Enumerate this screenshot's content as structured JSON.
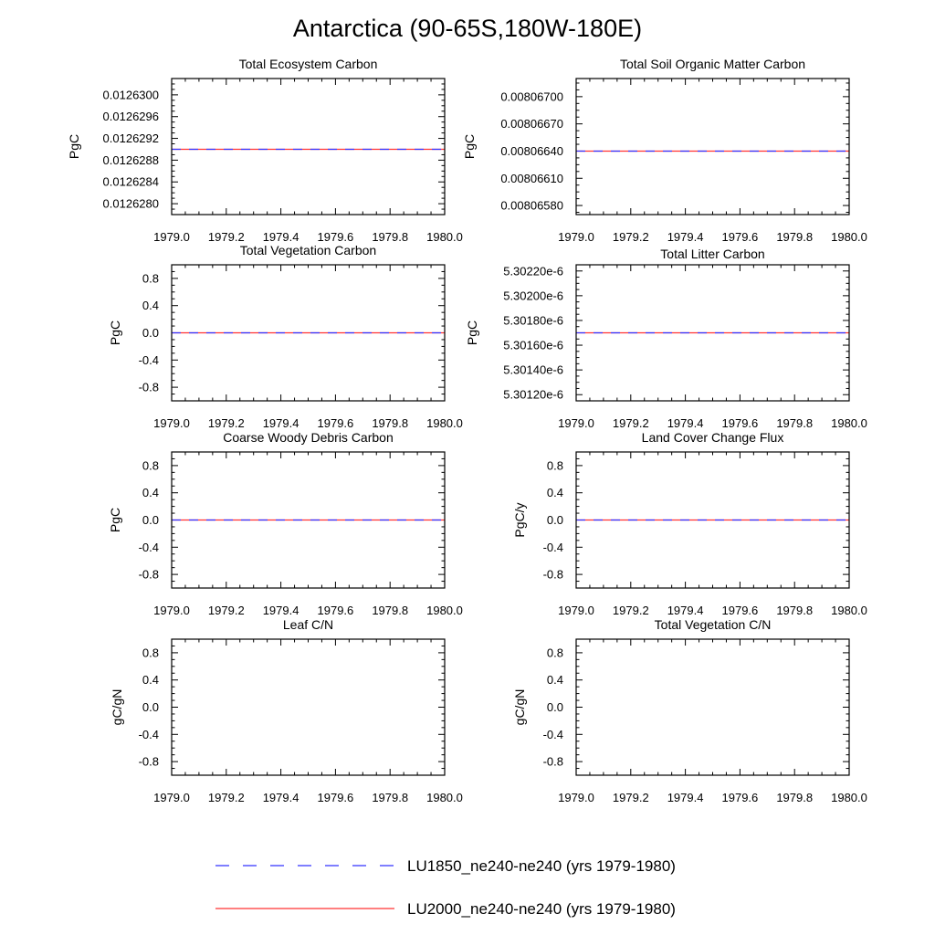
{
  "figure_title": "Antarctica (90-65S,180W-180E)",
  "series_colors": [
    "#3333ff",
    "#ff3333"
  ],
  "legend": [
    {
      "label": "LU1850_ne240-ne240 (yrs 1979-1980)",
      "color": "#3333ff",
      "style": "dashed"
    },
    {
      "label": "LU2000_ne240-ne240 (yrs 1979-1980)",
      "color": "#ff3333",
      "style": "solid"
    }
  ],
  "chart_data": [
    {
      "type": "line",
      "title": "Total Ecosystem Carbon",
      "ylabel": "PgC",
      "xlim": [
        1979.0,
        1980.0
      ],
      "ylim": [
        0.0126278,
        0.0126303
      ],
      "xticks": [
        "1979.0",
        "1979.2",
        "1979.4",
        "1979.6",
        "1979.8",
        "1980.0"
      ],
      "yticks": [
        "0.0126280",
        "0.0126284",
        "0.0126288",
        "0.0126292",
        "0.0126296",
        "0.0126300"
      ],
      "series": [
        {
          "x": [
            1979.0,
            1980.0
          ],
          "values": [
            0.012629,
            0.012629
          ]
        },
        {
          "x": [
            1979.0,
            1980.0
          ],
          "values": [
            0.012629,
            0.012629
          ]
        }
      ]
    },
    {
      "type": "line",
      "title": "Total Soil Organic Matter Carbon",
      "ylabel": "PgC",
      "xlim": [
        1979.0,
        1980.0
      ],
      "ylim": [
        0.0080657,
        0.0080672
      ],
      "xticks": [
        "1979.0",
        "1979.2",
        "1979.4",
        "1979.6",
        "1979.8",
        "1980.0"
      ],
      "yticks": [
        "0.00806580",
        "0.00806610",
        "0.00806640",
        "0.00806670",
        "0.00806700"
      ],
      "series": [
        {
          "x": [
            1979.0,
            1980.0
          ],
          "values": [
            0.0080664,
            0.0080664
          ]
        },
        {
          "x": [
            1979.0,
            1980.0
          ],
          "values": [
            0.0080664,
            0.0080664
          ]
        }
      ]
    },
    {
      "type": "line",
      "title": "Total Vegetation Carbon",
      "ylabel": "PgC",
      "xlim": [
        1979.0,
        1980.0
      ],
      "ylim": [
        -1.0,
        1.0
      ],
      "xticks": [
        "1979.0",
        "1979.2",
        "1979.4",
        "1979.6",
        "1979.8",
        "1980.0"
      ],
      "yticks": [
        "-0.8",
        "-0.4",
        "0.0",
        "0.4",
        "0.8"
      ],
      "series": [
        {
          "x": [
            1979.0,
            1980.0
          ],
          "values": [
            0.0,
            0.0
          ]
        },
        {
          "x": [
            1979.0,
            1980.0
          ],
          "values": [
            0.0,
            0.0
          ]
        }
      ]
    },
    {
      "type": "line",
      "title": "Total Litter Carbon",
      "ylabel": "PgC",
      "xlim": [
        1979.0,
        1980.0
      ],
      "ylim": [
        5.30115e-06,
        5.30225e-06
      ],
      "xticks": [
        "1979.0",
        "1979.2",
        "1979.4",
        "1979.6",
        "1979.8",
        "1980.0"
      ],
      "yticks": [
        "5.30120e-6",
        "5.30140e-6",
        "5.30160e-6",
        "5.30180e-6",
        "5.30200e-6",
        "5.30220e-6"
      ],
      "series": [
        {
          "x": [
            1979.0,
            1980.0
          ],
          "values": [
            5.3017e-06,
            5.3017e-06
          ]
        },
        {
          "x": [
            1979.0,
            1980.0
          ],
          "values": [
            5.3017e-06,
            5.3017e-06
          ]
        }
      ]
    },
    {
      "type": "line",
      "title": "Coarse Woody Debris Carbon",
      "ylabel": "PgC",
      "xlim": [
        1979.0,
        1980.0
      ],
      "ylim": [
        -1.0,
        1.0
      ],
      "xticks": [
        "1979.0",
        "1979.2",
        "1979.4",
        "1979.6",
        "1979.8",
        "1980.0"
      ],
      "yticks": [
        "-0.8",
        "-0.4",
        "0.0",
        "0.4",
        "0.8"
      ],
      "series": [
        {
          "x": [
            1979.0,
            1980.0
          ],
          "values": [
            0.0,
            0.0
          ]
        },
        {
          "x": [
            1979.0,
            1980.0
          ],
          "values": [
            0.0,
            0.0
          ]
        }
      ]
    },
    {
      "type": "line",
      "title": "Land Cover Change Flux",
      "ylabel": "PgC/y",
      "xlim": [
        1979.0,
        1980.0
      ],
      "ylim": [
        -1.0,
        1.0
      ],
      "xticks": [
        "1979.0",
        "1979.2",
        "1979.4",
        "1979.6",
        "1979.8",
        "1980.0"
      ],
      "yticks": [
        "-0.8",
        "-0.4",
        "0.0",
        "0.4",
        "0.8"
      ],
      "series": [
        {
          "x": [
            1979.0,
            1980.0
          ],
          "values": [
            0.0,
            0.0
          ]
        },
        {
          "x": [
            1979.0,
            1980.0
          ],
          "values": [
            0.0,
            0.0
          ]
        }
      ]
    },
    {
      "type": "line",
      "title": "Leaf C/N",
      "ylabel": "gC/gN",
      "xlim": [
        1979.0,
        1980.0
      ],
      "ylim": [
        -1.0,
        1.0
      ],
      "xticks": [
        "1979.0",
        "1979.2",
        "1979.4",
        "1979.6",
        "1979.8",
        "1980.0"
      ],
      "yticks": [
        "-0.8",
        "-0.4",
        "0.0",
        "0.4",
        "0.8"
      ],
      "series": []
    },
    {
      "type": "line",
      "title": "Total Vegetation C/N",
      "ylabel": "gC/gN",
      "xlim": [
        1979.0,
        1980.0
      ],
      "ylim": [
        -1.0,
        1.0
      ],
      "xticks": [
        "1979.0",
        "1979.2",
        "1979.4",
        "1979.6",
        "1979.8",
        "1980.0"
      ],
      "yticks": [
        "-0.8",
        "-0.4",
        "0.0",
        "0.4",
        "0.8"
      ],
      "series": []
    }
  ]
}
